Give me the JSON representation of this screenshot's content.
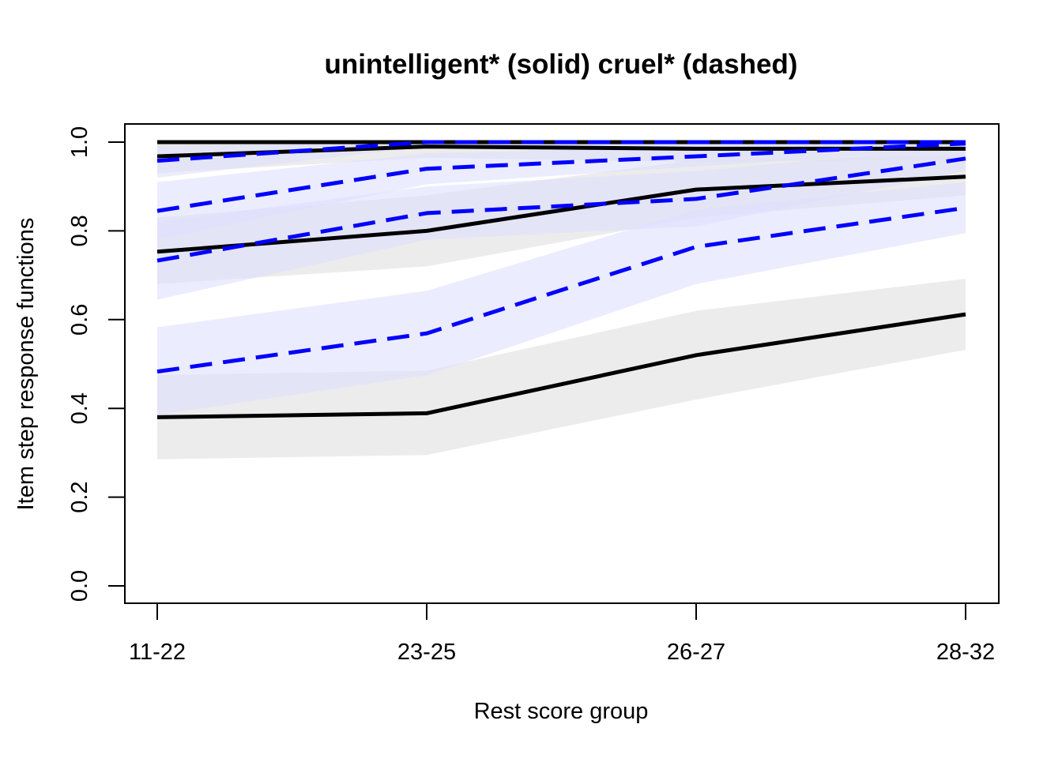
{
  "chart_data": {
    "type": "line",
    "title": "unintelligent* (solid) cruel* (dashed)",
    "xlabel": "Rest score group",
    "ylabel": "Item step response functions",
    "categories": [
      "11-22",
      "23-25",
      "26-27",
      "28-32"
    ],
    "ylim": [
      0,
      1
    ],
    "yticks": [
      "0.0",
      "0.2",
      "0.4",
      "0.6",
      "0.8",
      "1.0"
    ],
    "grid": false,
    "colors": {
      "solid_line": "#000000",
      "solid_band": "#e6e6e6",
      "dashed_line": "#0000ff",
      "dashed_band": "#e0e0ff"
    },
    "series": [
      {
        "item": "unintelligent*",
        "style": "solid",
        "values": [
          1.0,
          1.0,
          1.0,
          1.0
        ],
        "lower": [
          0.99,
          0.99,
          0.99,
          0.99
        ],
        "upper": [
          1.0,
          1.0,
          1.0,
          1.0
        ]
      },
      {
        "item": "unintelligent*",
        "style": "solid",
        "values": [
          0.968,
          0.99,
          0.985,
          0.985
        ],
        "lower": [
          0.93,
          0.965,
          0.955,
          0.96
        ],
        "upper": [
          0.995,
          1.0,
          1.0,
          1.0
        ]
      },
      {
        "item": "unintelligent*",
        "style": "solid",
        "values": [
          0.753,
          0.8,
          0.893,
          0.922
        ],
        "lower": [
          0.68,
          0.72,
          0.83,
          0.88
        ],
        "upper": [
          0.83,
          0.88,
          0.96,
          0.97
        ]
      },
      {
        "item": "unintelligent*",
        "style": "solid",
        "values": [
          0.38,
          0.389,
          0.52,
          0.612
        ],
        "lower": [
          0.285,
          0.295,
          0.42,
          0.532
        ],
        "upper": [
          0.475,
          0.485,
          0.62,
          0.692
        ]
      },
      {
        "item": "cruel*",
        "style": "dashed",
        "values": [
          0.958,
          1.0,
          1.0,
          1.0
        ],
        "lower": [
          0.92,
          0.99,
          0.99,
          0.99
        ],
        "upper": [
          0.99,
          1.0,
          1.0,
          1.0
        ]
      },
      {
        "item": "cruel*",
        "style": "dashed",
        "values": [
          0.845,
          0.94,
          0.968,
          0.997
        ],
        "lower": [
          0.78,
          0.905,
          0.945,
          0.985
        ],
        "upper": [
          0.91,
          0.975,
          0.99,
          1.0
        ]
      },
      {
        "item": "cruel*",
        "style": "dashed",
        "values": [
          0.733,
          0.84,
          0.872,
          0.963
        ],
        "lower": [
          0.645,
          0.78,
          0.81,
          0.935
        ],
        "upper": [
          0.82,
          0.9,
          0.935,
          0.99
        ]
      },
      {
        "item": "cruel*",
        "style": "dashed",
        "values": [
          0.483,
          0.569,
          0.764,
          0.852
        ],
        "lower": [
          0.385,
          0.475,
          0.68,
          0.795
        ],
        "upper": [
          0.583,
          0.665,
          0.848,
          0.91
        ]
      }
    ]
  }
}
